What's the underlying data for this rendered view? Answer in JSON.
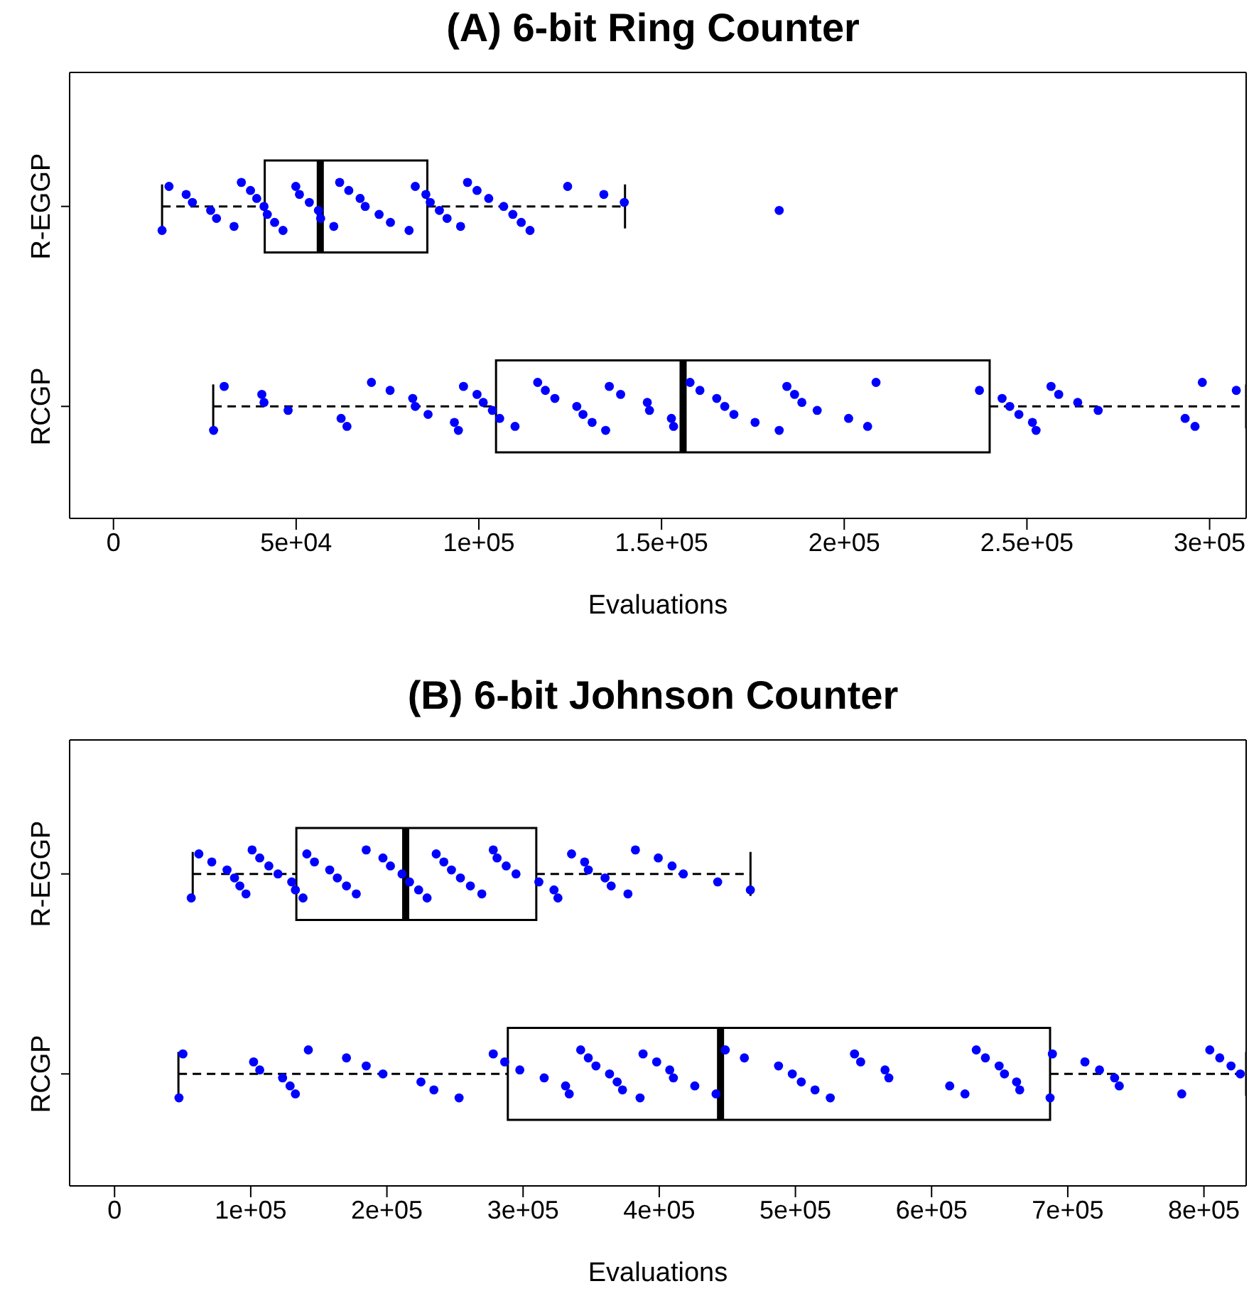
{
  "chart_data": [
    {
      "type": "box",
      "title": "(A) 6-bit Ring Counter",
      "xlabel": "Evaluations",
      "orientation": "horizontal",
      "categories": [
        "R-EGGP",
        "RCGP"
      ],
      "marker": "circle",
      "boxes": [
        {
          "low": 13300,
          "q1": 41400,
          "median": 56600,
          "q3": 85900,
          "high": 140000
        },
        {
          "low": 27300,
          "q1": 104700,
          "median": 155900,
          "q3": 239800,
          "high": 310000
        }
      ],
      "xlim": [
        -12000,
        310000
      ],
      "xticks": [
        0,
        {
          "value": 50000,
          "label": "5e+04"
        },
        {
          "value": 100000,
          "label": "1e+05"
        },
        {
          "value": 150000,
          "label": "1.5e+05"
        },
        {
          "value": 200000,
          "label": "2e+05"
        },
        {
          "value": 250000,
          "label": "2.5e+05"
        },
        {
          "value": 300000,
          "label": "3e+05"
        }
      ],
      "series": [
        {
          "type": "scatter",
          "color": "#0000ff",
          "x": [
            "R-EGGP",
            "R-EGGP",
            "R-EGGP",
            "R-EGGP",
            "R-EGGP",
            "R-EGGP",
            "R-EGGP",
            "R-EGGP",
            "R-EGGP",
            "R-EGGP",
            "R-EGGP",
            "R-EGGP",
            "R-EGGP",
            "R-EGGP",
            "R-EGGP",
            "R-EGGP",
            "R-EGGP",
            "R-EGGP",
            "R-EGGP",
            "R-EGGP",
            "R-EGGP",
            "R-EGGP",
            "R-EGGP",
            "R-EGGP",
            "R-EGGP",
            "R-EGGP",
            "R-EGGP",
            "R-EGGP",
            "R-EGGP",
            "R-EGGP",
            "R-EGGP",
            "R-EGGP",
            "R-EGGP",
            "R-EGGP",
            "R-EGGP",
            "R-EGGP",
            "R-EGGP",
            "R-EGGP",
            "R-EGGP",
            "R-EGGP",
            "R-EGGP",
            "R-EGGP",
            "R-EGGP",
            "R-EGGP"
          ],
          "values": [
            13300,
            15200,
            19900,
            21600,
            26600,
            28200,
            33000,
            35000,
            37500,
            39200,
            41200,
            42100,
            44100,
            46400,
            49900,
            50900,
            53600,
            56100,
            56700,
            60300,
            61900,
            64400,
            67500,
            68900,
            72700,
            75800,
            80900,
            82600,
            85500,
            86700,
            89200,
            91300,
            95000,
            96900,
            99500,
            102700,
            106800,
            109300,
            111600,
            114000,
            124300,
            134200,
            139800,
            182200
          ]
        },
        {
          "type": "scatter",
          "color": "#0000ff",
          "x": [
            "RCGP",
            "RCGP",
            "RCGP",
            "RCGP",
            "RCGP",
            "RCGP",
            "RCGP",
            "RCGP",
            "RCGP",
            "RCGP",
            "RCGP",
            "RCGP",
            "RCGP",
            "RCGP",
            "RCGP",
            "RCGP",
            "RCGP",
            "RCGP",
            "RCGP",
            "RCGP",
            "RCGP",
            "RCGP",
            "RCGP",
            "RCGP",
            "RCGP",
            "RCGP",
            "RCGP",
            "RCGP",
            "RCGP",
            "RCGP",
            "RCGP",
            "RCGP",
            "RCGP",
            "RCGP",
            "RCGP",
            "RCGP",
            "RCGP",
            "RCGP",
            "RCGP",
            "RCGP",
            "RCGP",
            "RCGP",
            "RCGP",
            "RCGP",
            "RCGP",
            "RCGP",
            "RCGP",
            "RCGP",
            "RCGP",
            "RCGP",
            "RCGP",
            "RCGP",
            "RCGP",
            "RCGP",
            "RCGP",
            "RCGP",
            "RCGP",
            "RCGP",
            "RCGP",
            "RCGP",
            "RCGP"
          ],
          "values": [
            27400,
            30300,
            40600,
            41200,
            47800,
            62300,
            63900,
            70600,
            75700,
            81900,
            82600,
            86100,
            93300,
            94400,
            95800,
            99500,
            101200,
            103700,
            105700,
            109900,
            116100,
            118200,
            120800,
            126800,
            128500,
            131000,
            134700,
            135700,
            138800,
            146100,
            146700,
            152700,
            153300,
            157800,
            160500,
            165100,
            167300,
            169800,
            175600,
            182200,
            184300,
            186400,
            188400,
            192600,
            201200,
            206400,
            208700,
            237000,
            243200,
            245300,
            247800,
            251500,
            252500,
            256600,
            258700,
            263900,
            269500,
            293300,
            296000,
            298000,
            307300
          ]
        }
      ]
    },
    {
      "type": "box",
      "title": "(B) 6-bit Johnson Counter",
      "xlabel": "Evaluations",
      "orientation": "horizontal",
      "categories": [
        "R-EGGP",
        "RCGP"
      ],
      "marker": "circle",
      "boxes": [
        {
          "low": 57400,
          "q1": 133500,
          "median": 213800,
          "q3": 309700,
          "high": 467000
        },
        {
          "low": 46900,
          "q1": 288800,
          "median": 445000,
          "q3": 687000,
          "high": 831000
        }
      ],
      "xlim": [
        -33000,
        831000
      ],
      "xticks": [
        0,
        {
          "value": 100000,
          "label": "1e+05"
        },
        {
          "value": 200000,
          "label": "2e+05"
        },
        {
          "value": 300000,
          "label": "3e+05"
        },
        {
          "value": 400000,
          "label": "4e+05"
        },
        {
          "value": 500000,
          "label": "5e+05"
        },
        {
          "value": 600000,
          "label": "6e+05"
        },
        {
          "value": 700000,
          "label": "7e+05"
        },
        {
          "value": 800000,
          "label": "8e+05"
        }
      ],
      "series": [
        {
          "type": "scatter",
          "color": "#0000ff",
          "x": [
            "R-EGGP",
            "R-EGGP",
            "R-EGGP",
            "R-EGGP",
            "R-EGGP",
            "R-EGGP",
            "R-EGGP",
            "R-EGGP",
            "R-EGGP",
            "R-EGGP",
            "R-EGGP",
            "R-EGGP",
            "R-EGGP",
            "R-EGGP",
            "R-EGGP",
            "R-EGGP",
            "R-EGGP",
            "R-EGGP",
            "R-EGGP",
            "R-EGGP",
            "R-EGGP",
            "R-EGGP",
            "R-EGGP",
            "R-EGGP",
            "R-EGGP",
            "R-EGGP",
            "R-EGGP",
            "R-EGGP",
            "R-EGGP",
            "R-EGGP",
            "R-EGGP",
            "R-EGGP",
            "R-EGGP",
            "R-EGGP",
            "R-EGGP",
            "R-EGGP",
            "R-EGGP",
            "R-EGGP",
            "R-EGGP",
            "R-EGGP",
            "R-EGGP",
            "R-EGGP",
            "R-EGGP",
            "R-EGGP",
            "R-EGGP",
            "R-EGGP",
            "R-EGGP",
            "R-EGGP",
            "R-EGGP",
            "R-EGGP",
            "R-EGGP",
            "R-EGGP"
          ],
          "values": [
            56300,
            61900,
            71400,
            82600,
            88100,
            92000,
            96500,
            101000,
            106600,
            113300,
            120000,
            130100,
            132800,
            138400,
            141200,
            146800,
            158000,
            163600,
            170300,
            177500,
            184800,
            197100,
            202600,
            211100,
            216600,
            223300,
            229500,
            236200,
            241800,
            247400,
            254000,
            261300,
            269700,
            278100,
            280900,
            287600,
            294800,
            311600,
            322700,
            325600,
            335600,
            345200,
            347900,
            360200,
            364700,
            377000,
            382500,
            399300,
            409400,
            417700,
            442900,
            466900
          ]
        },
        {
          "type": "scatter",
          "color": "#0000ff",
          "x": [
            "RCGP",
            "RCGP",
            "RCGP",
            "RCGP",
            "RCGP",
            "RCGP",
            "RCGP",
            "RCGP",
            "RCGP",
            "RCGP",
            "RCGP",
            "RCGP",
            "RCGP",
            "RCGP",
            "RCGP",
            "RCGP",
            "RCGP",
            "RCGP",
            "RCGP",
            "RCGP",
            "RCGP",
            "RCGP",
            "RCGP",
            "RCGP",
            "RCGP",
            "RCGP",
            "RCGP",
            "RCGP",
            "RCGP",
            "RCGP",
            "RCGP",
            "RCGP",
            "RCGP",
            "RCGP",
            "RCGP",
            "RCGP",
            "RCGP",
            "RCGP",
            "RCGP",
            "RCGP",
            "RCGP",
            "RCGP",
            "RCGP",
            "RCGP",
            "RCGP",
            "RCGP",
            "RCGP",
            "RCGP",
            "RCGP",
            "RCGP",
            "RCGP",
            "RCGP",
            "RCGP",
            "RCGP",
            "RCGP",
            "RCGP",
            "RCGP",
            "RCGP",
            "RCGP",
            "RCGP",
            "RCGP",
            "RCGP",
            "RCGP"
          ],
          "values": [
            47300,
            50200,
            102100,
            106600,
            123400,
            128900,
            132800,
            142300,
            170300,
            184800,
            197100,
            225000,
            234500,
            253000,
            278100,
            286500,
            297600,
            315500,
            331200,
            333900,
            342300,
            347900,
            353500,
            363500,
            369100,
            373000,
            385900,
            388100,
            398100,
            407700,
            410400,
            426100,
            441700,
            448500,
            462500,
            487600,
            497700,
            504300,
            514400,
            525600,
            543400,
            547900,
            565800,
            568600,
            613300,
            624500,
            632800,
            639500,
            649600,
            653500,
            662400,
            664700,
            687000,
            688700,
            712600,
            723300,
            734400,
            737800,
            783700,
            804300,
            811600,
            819900,
            826700
          ]
        }
      ]
    }
  ]
}
